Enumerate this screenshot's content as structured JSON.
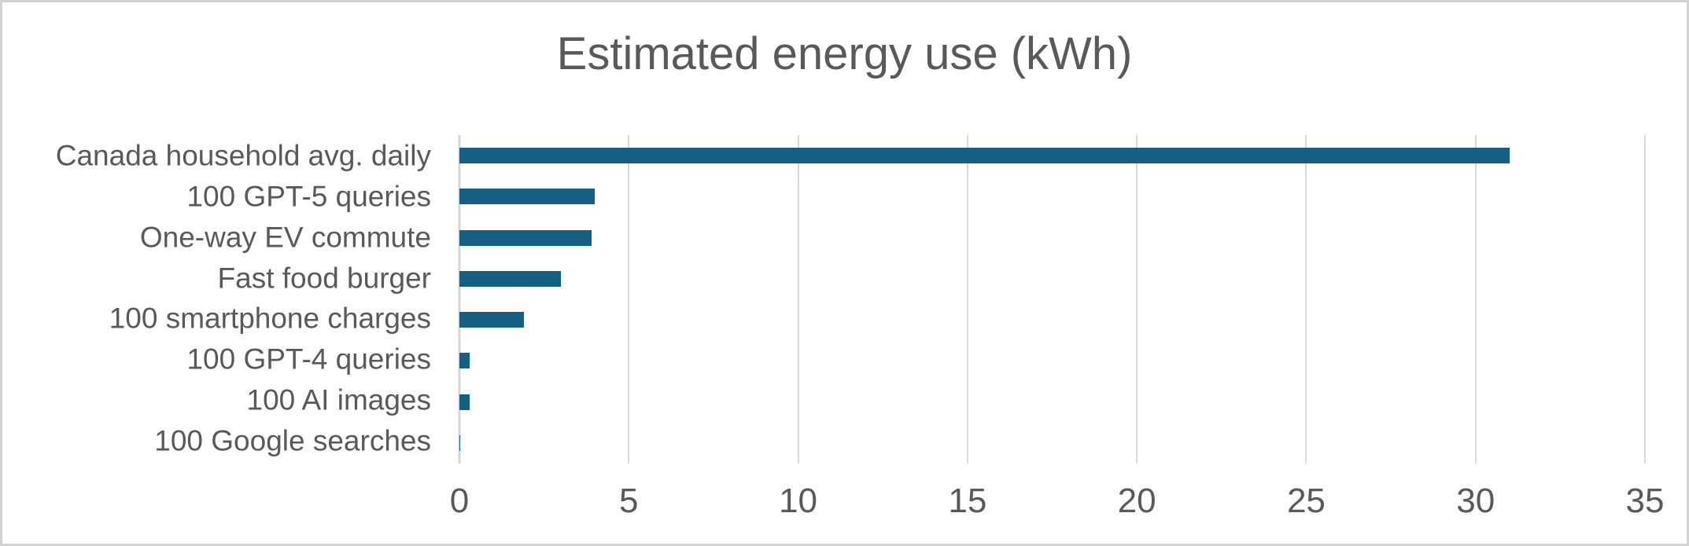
{
  "title": "Estimated energy use (kWh)",
  "colors": {
    "bar": "#156082",
    "text": "#595959",
    "gridline": "#d9d9d9",
    "axis_line": "#d6d6d6",
    "frame_border": "#d2d2d2",
    "background": "#ffffff"
  },
  "chart_data": {
    "type": "bar",
    "orientation": "horizontal",
    "title": "Estimated energy use (kWh)",
    "categories": [
      "Canada household avg. daily",
      "100 GPT-5 queries",
      "One-way EV commute",
      "Fast food burger",
      "100 smartphone charges",
      "100 GPT-4 queries",
      "100 AI images",
      "100 Google searches"
    ],
    "values": [
      31,
      4,
      3.9,
      3,
      1.9,
      0.3,
      0.3,
      0.03
    ],
    "xlabel": "",
    "ylabel": "",
    "xlim": [
      0,
      35
    ],
    "xticks": [
      0,
      5,
      10,
      15,
      20,
      25,
      30,
      35
    ],
    "grid": true,
    "legend": false
  }
}
